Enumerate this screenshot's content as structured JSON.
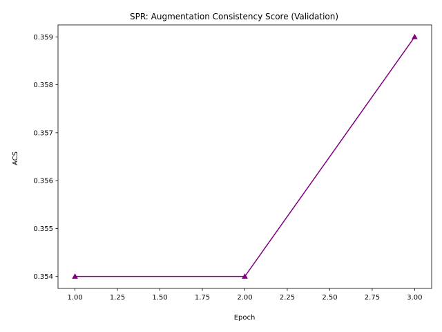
{
  "chart_data": {
    "type": "line",
    "title": "SPR: Augmentation Consistency Score (Validation)",
    "xlabel": "Epoch",
    "ylabel": "ACS",
    "x": [
      1.0,
      2.0,
      3.0
    ],
    "series": [
      {
        "values": [
          0.354,
          0.354,
          0.359
        ],
        "color": "#800080",
        "marker": "triangle-up"
      }
    ],
    "xlim": [
      0.9,
      3.1
    ],
    "ylim": [
      0.35375,
      0.35925
    ],
    "x_ticks": [
      1.0,
      1.25,
      1.5,
      1.75,
      2.0,
      2.25,
      2.5,
      2.75,
      3.0
    ],
    "x_tick_labels": [
      "1.00",
      "1.25",
      "1.50",
      "1.75",
      "2.00",
      "2.25",
      "2.50",
      "2.75",
      "3.00"
    ],
    "y_ticks": [
      0.354,
      0.355,
      0.356,
      0.357,
      0.358,
      0.359
    ],
    "y_tick_labels": [
      "0.354",
      "0.355",
      "0.356",
      "0.357",
      "0.358",
      "0.359"
    ],
    "grid": false,
    "legend": "none"
  }
}
